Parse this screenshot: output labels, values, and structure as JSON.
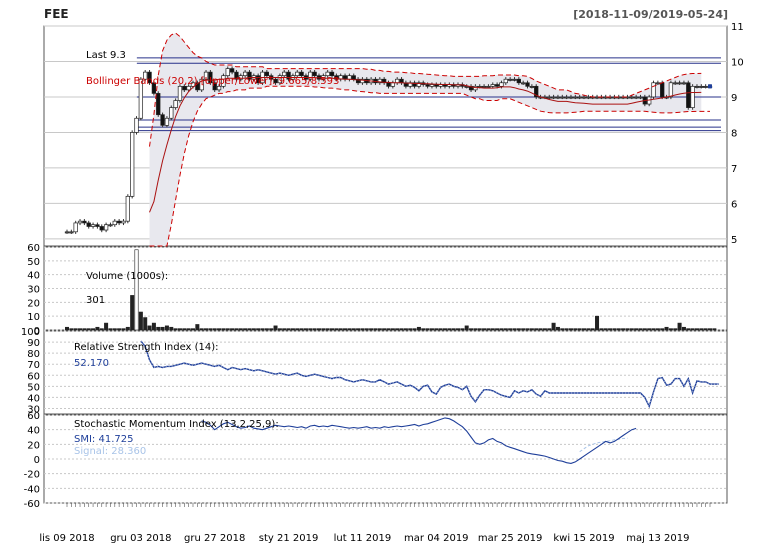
{
  "title": "FEE",
  "date_range": "[2018-11-09/2019-05-24]",
  "chart_data": [
    {
      "type": "candlestick",
      "panel": "price",
      "legend": {
        "last": "Last 9.3",
        "bbands": "Bollinger Bands (20,2) [Upper/Lower]: 9.665/8.593"
      },
      "ylim": [
        4.8,
        11
      ],
      "yticks": [
        5,
        6,
        7,
        8,
        9,
        10,
        11
      ],
      "xticks": [
        "lis 09 2018",
        "gru 03 2018",
        "gru 27 2018",
        "sty 21 2019",
        "lut 11 2019",
        "mar 04 2019",
        "mar 25 2019",
        "kwi 15 2019",
        "maj 13 2019"
      ],
      "xtick_index": [
        0,
        17,
        34,
        51,
        68,
        85,
        102,
        119,
        136
      ],
      "last": 9.3,
      "close": [
        5.2,
        5.2,
        5.45,
        5.5,
        5.45,
        5.35,
        5.4,
        5.35,
        5.25,
        5.4,
        5.4,
        5.5,
        5.45,
        5.5,
        6.2,
        8.0,
        8.4,
        9.5,
        9.7,
        9.4,
        9.1,
        8.5,
        8.2,
        8.4,
        8.7,
        8.9,
        9.3,
        9.2,
        9.3,
        9.4,
        9.2,
        9.5,
        9.7,
        9.4,
        9.2,
        9.3,
        9.6,
        9.8,
        9.7,
        9.5,
        9.6,
        9.7,
        9.5,
        9.6,
        9.4,
        9.7,
        9.6,
        9.5,
        9.4,
        9.6,
        9.7,
        9.5,
        9.6,
        9.7,
        9.6,
        9.5,
        9.7,
        9.6,
        9.5,
        9.6,
        9.7,
        9.6,
        9.5,
        9.6,
        9.5,
        9.6,
        9.5,
        9.4,
        9.5,
        9.4,
        9.5,
        9.4,
        9.5,
        9.4,
        9.3,
        9.4,
        9.5,
        9.4,
        9.3,
        9.4,
        9.3,
        9.4,
        9.35,
        9.3,
        9.35,
        9.3,
        9.35,
        9.3,
        9.35,
        9.3,
        9.35,
        9.3,
        9.3,
        9.2,
        9.3,
        9.3,
        9.3,
        9.3,
        9.35,
        9.3,
        9.4,
        9.5,
        9.5,
        9.5,
        9.4,
        9.4,
        9.3,
        9.3,
        9.0,
        9.0,
        9.0,
        9.0,
        9.0,
        9.0,
        9.0,
        9.0,
        9.0,
        9.0,
        9.0,
        9.0,
        9.0,
        9.0,
        9.0,
        9.0,
        9.0,
        9.0,
        9.0,
        9.0,
        9.0,
        9.0,
        9.0,
        9.0,
        9.0,
        8.8,
        9.0,
        9.4,
        9.4,
        9.0,
        9.0,
        9.4,
        9.4,
        9.4,
        9.4,
        8.7,
        9.3,
        9.3,
        9.3,
        9.3,
        9.3
      ],
      "upper_band": [
        null,
        null,
        null,
        null,
        null,
        null,
        null,
        null,
        null,
        null,
        null,
        null,
        null,
        null,
        null,
        null,
        null,
        null,
        null,
        7.6,
        8.5,
        9.6,
        10.3,
        10.6,
        10.75,
        10.8,
        10.7,
        10.55,
        10.4,
        10.25,
        10.15,
        10.1,
        10.0,
        9.95,
        9.9,
        9.9,
        9.9,
        9.9,
        9.9,
        9.85,
        9.85,
        9.85,
        9.85,
        9.85,
        9.85,
        9.85,
        9.8,
        9.8,
        9.8,
        9.8,
        9.8,
        9.8,
        9.8,
        9.8,
        9.8,
        9.8,
        9.8,
        9.8,
        9.8,
        9.8,
        9.8,
        9.8,
        9.8,
        9.8,
        9.8,
        9.8,
        9.8,
        9.8,
        9.8,
        9.78,
        9.78,
        9.75,
        9.75,
        9.72,
        9.72,
        9.7,
        9.7,
        9.7,
        9.68,
        9.68,
        9.66,
        9.66,
        9.65,
        9.64,
        9.63,
        9.62,
        9.61,
        9.6,
        9.6,
        9.58,
        9.58,
        9.58,
        9.58,
        9.58,
        9.58,
        9.58,
        9.6,
        9.6,
        9.6,
        9.62,
        9.62,
        9.62,
        9.62,
        9.62,
        9.6,
        9.6,
        9.58,
        9.52,
        9.45,
        9.4,
        9.35,
        9.3,
        9.25,
        9.2,
        9.2,
        9.2,
        9.15,
        9.1,
        9.08,
        9.05,
        9.02,
        9.0,
        9.0,
        9.0,
        9.0,
        9.0,
        9.0,
        9.0,
        9.0,
        9.0,
        9.05,
        9.1,
        9.15,
        9.2,
        9.25,
        9.3,
        9.35,
        9.4,
        9.45,
        9.5,
        9.55,
        9.6,
        9.63,
        9.65,
        9.66,
        9.66,
        9.665
      ],
      "lower_band": [
        null,
        null,
        null,
        null,
        null,
        null,
        null,
        null,
        null,
        null,
        null,
        null,
        null,
        null,
        null,
        null,
        null,
        null,
        null,
        3.9,
        3.6,
        3.7,
        4.1,
        4.7,
        5.4,
        6.1,
        6.8,
        7.4,
        7.9,
        8.3,
        8.6,
        8.8,
        8.95,
        9.0,
        9.05,
        9.1,
        9.1,
        9.15,
        9.15,
        9.2,
        9.2,
        9.2,
        9.25,
        9.25,
        9.25,
        9.25,
        9.3,
        9.3,
        9.3,
        9.3,
        9.3,
        9.3,
        9.3,
        9.3,
        9.3,
        9.3,
        9.3,
        9.28,
        9.28,
        9.26,
        9.25,
        9.25,
        9.23,
        9.22,
        9.2,
        9.2,
        9.18,
        9.16,
        9.15,
        9.14,
        9.12,
        9.12,
        9.1,
        9.1,
        9.1,
        9.1,
        9.1,
        9.1,
        9.1,
        9.1,
        9.1,
        9.1,
        9.1,
        9.1,
        9.1,
        9.1,
        9.1,
        9.1,
        9.1,
        9.1,
        9.1,
        9.1,
        9.05,
        9.0,
        8.95,
        8.95,
        8.9,
        8.9,
        8.9,
        8.9,
        8.95,
        8.95,
        8.95,
        8.9,
        8.85,
        8.8,
        8.75,
        8.7,
        8.65,
        8.6,
        8.58,
        8.56,
        8.55,
        8.55,
        8.55,
        8.55,
        8.56,
        8.57,
        8.58,
        8.6,
        8.6,
        8.6,
        8.6,
        8.6,
        8.6,
        8.6,
        8.6,
        8.6,
        8.6,
        8.6,
        8.6,
        8.6,
        8.6,
        8.6,
        8.58,
        8.57,
        8.56,
        8.55,
        8.55,
        8.55,
        8.56,
        8.57,
        8.58,
        8.59,
        8.59,
        8.593,
        8.593,
        8.593,
        8.593
      ],
      "hlines": [
        10.1,
        9.95,
        9.0,
        8.35,
        8.15,
        8.05
      ]
    },
    {
      "type": "bar",
      "panel": "volume",
      "legend": {
        "label": "Volume (1000s):",
        "value": "301"
      },
      "ylim": [
        0,
        60
      ],
      "yticks": [
        0,
        10,
        20,
        30,
        40,
        50,
        60
      ],
      "values": [
        2,
        1,
        1,
        1,
        1,
        1,
        1,
        2,
        1,
        5,
        1,
        1,
        1,
        1,
        2,
        25,
        58,
        13,
        9,
        3,
        5,
        2,
        2,
        3,
        2,
        1,
        1,
        1,
        1,
        1,
        4,
        1,
        1,
        1,
        1,
        1,
        1,
        1,
        1,
        1,
        1,
        1,
        1,
        1,
        1,
        1,
        1,
        1,
        3,
        1,
        1,
        1,
        1,
        1,
        1,
        1,
        1,
        1,
        1,
        1,
        1,
        1,
        1,
        1,
        1,
        1,
        1,
        1,
        1,
        1,
        1,
        1,
        1,
        1,
        1,
        1,
        1,
        1,
        1,
        1,
        1,
        2,
        1,
        1,
        1,
        1,
        1,
        1,
        1,
        1,
        1,
        1,
        3,
        1,
        1,
        1,
        1,
        1,
        1,
        1,
        1,
        1,
        1,
        1,
        1,
        1,
        1,
        1,
        1,
        1,
        1,
        1,
        5,
        2,
        1,
        1,
        1,
        1,
        1,
        1,
        1,
        1,
        10,
        1,
        1,
        1,
        1,
        1,
        1,
        1,
        1,
        1,
        1,
        1,
        1,
        1,
        1,
        1,
        2,
        1,
        1,
        5,
        2,
        1,
        1,
        1,
        1,
        1,
        1,
        1
      ]
    },
    {
      "type": "line",
      "panel": "rsi",
      "legend": {
        "label": "Relative Strength Index (14):",
        "value": "52.170"
      },
      "ylim": [
        25,
        100
      ],
      "yticks": [
        30,
        40,
        50,
        60,
        70,
        80,
        90,
        100
      ],
      "values": [
        null,
        null,
        null,
        null,
        null,
        null,
        null,
        null,
        null,
        null,
        null,
        null,
        null,
        null,
        null,
        null,
        null,
        91,
        86,
        74,
        67,
        68,
        67,
        68,
        68,
        69,
        70,
        71,
        70,
        69,
        70,
        71,
        70,
        69,
        68,
        69,
        67,
        65,
        67,
        66,
        65,
        66,
        65,
        64,
        65,
        64,
        63,
        62,
        61,
        62,
        61,
        60,
        61,
        62,
        60,
        59,
        60,
        61,
        60,
        59,
        58,
        57,
        58,
        58,
        56,
        55,
        54,
        55,
        56,
        55,
        54,
        54,
        56,
        54,
        52,
        53,
        54,
        52,
        50,
        51,
        49,
        46,
        50,
        51,
        45,
        43,
        49,
        51,
        52,
        50,
        49,
        47,
        50,
        41,
        36,
        42,
        47,
        47,
        46,
        44,
        42,
        41,
        40,
        46,
        44,
        46,
        45,
        47,
        43,
        41,
        46,
        44,
        44,
        44,
        44,
        44,
        44,
        44,
        44,
        44,
        44,
        44,
        44,
        44,
        44,
        44,
        44,
        44,
        44,
        44,
        44,
        44,
        44,
        40,
        32,
        45,
        57,
        58,
        51,
        52,
        57,
        57,
        50,
        57,
        44,
        55,
        54,
        54,
        52,
        52,
        52
      ]
    },
    {
      "type": "line",
      "panel": "smi",
      "legend": {
        "label": "Stochastic Momentum Index (13,2,25,9):",
        "smi": "SMI: 41.725",
        "signal": "Signal: 28.360"
      },
      "ylim": [
        -60,
        60
      ],
      "yticks": [
        -60,
        -40,
        -20,
        0,
        20,
        40,
        60
      ],
      "smi": [
        null,
        null,
        null,
        null,
        null,
        null,
        null,
        null,
        null,
        null,
        null,
        null,
        null,
        null,
        null,
        null,
        null,
        null,
        null,
        null,
        null,
        null,
        null,
        null,
        null,
        null,
        null,
        null,
        null,
        null,
        null,
        52,
        50,
        46,
        40,
        44,
        48,
        50,
        47,
        44,
        42,
        43,
        45,
        42,
        41,
        40,
        42,
        44,
        46,
        45,
        44,
        45,
        44,
        43,
        44,
        42,
        45,
        46,
        44,
        45,
        44,
        46,
        45,
        44,
        43,
        42,
        43,
        42,
        43,
        44,
        42,
        43,
        42,
        44,
        43,
        44,
        45,
        44,
        45,
        46,
        47,
        45,
        47,
        48,
        50,
        52,
        54,
        56,
        55,
        52,
        48,
        44,
        38,
        30,
        22,
        20,
        22,
        26,
        28,
        24,
        22,
        18,
        16,
        14,
        12,
        10,
        8,
        7,
        6,
        5,
        4,
        2,
        0,
        -2,
        -3,
        -5,
        -6,
        -4,
        0,
        4,
        8,
        12,
        16,
        20,
        24,
        22,
        24,
        28,
        32,
        36,
        40,
        41.725
      ],
      "signal": [
        null,
        null,
        null,
        null,
        null,
        null,
        null,
        null,
        null,
        null,
        null,
        null,
        null,
        null,
        null,
        null,
        null,
        null,
        null,
        null,
        null,
        null,
        null,
        null,
        null,
        null,
        null,
        null,
        null,
        null,
        null,
        null,
        null,
        null,
        null,
        null,
        null,
        null,
        null,
        null,
        null,
        null,
        null,
        null,
        null,
        null,
        null,
        null,
        null,
        null,
        null,
        null,
        null,
        null,
        null,
        null,
        null,
        null,
        null,
        null,
        null,
        null,
        null,
        null,
        null,
        null,
        null,
        null,
        null,
        null,
        null,
        null,
        null,
        null,
        null,
        null,
        null,
        null,
        null,
        null,
        null,
        null,
        null,
        null,
        null,
        null,
        null,
        null,
        null,
        null,
        null,
        null,
        null,
        null,
        null,
        null,
        null,
        null,
        null,
        null,
        null,
        null,
        null,
        null,
        null,
        null,
        null,
        null,
        null,
        null,
        null,
        null,
        null,
        null,
        null,
        null,
        null,
        null,
        10,
        14,
        18,
        20,
        22,
        23,
        24,
        25,
        26,
        27,
        28,
        28.36
      ]
    }
  ]
}
